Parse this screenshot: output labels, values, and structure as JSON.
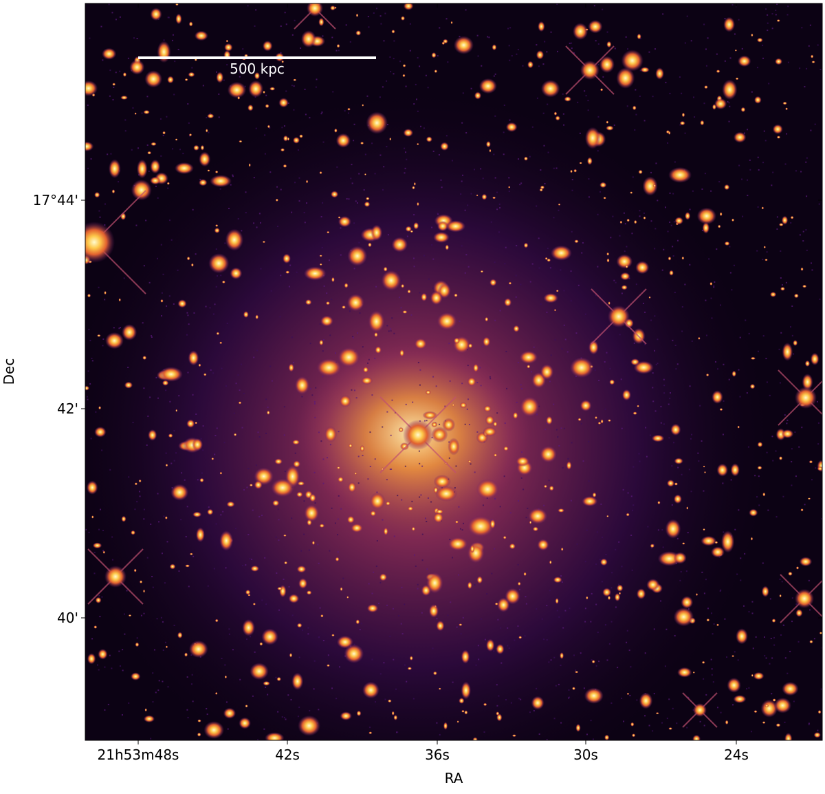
{
  "figure": {
    "x_label": "RA",
    "y_label": "Dec",
    "x_tick_labels": [
      "21h53m48s",
      "42s",
      "36s",
      "30s",
      "24s"
    ],
    "y_tick_labels": [
      "17°44'",
      "42'",
      "40'"
    ],
    "scale_bar_label": "500 kpc"
  }
}
